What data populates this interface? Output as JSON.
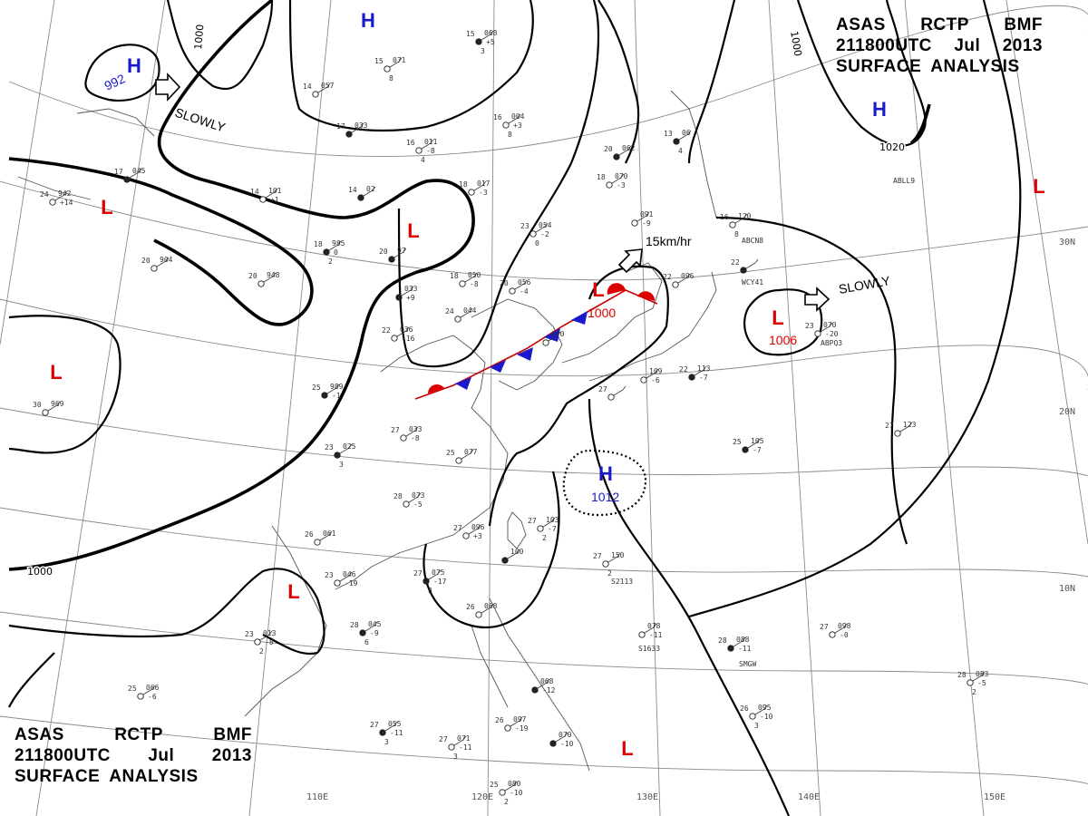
{
  "chart": {
    "title_lines": [
      [
        "ASAS",
        "RCTP",
        "BMF"
      ],
      [
        "211800UTC",
        "Jul",
        "2013"
      ],
      [
        "SURFACE",
        "ANALYSIS"
      ]
    ]
  },
  "longitude_labels": [
    "110E",
    "120E",
    "130E",
    "140E",
    "150E"
  ],
  "latitude_labels": [
    "30N",
    "20N",
    "10N"
  ],
  "isobar_labels": [
    "1000",
    "1000",
    "1020",
    "1000"
  ],
  "pressure_centers": [
    {
      "type": "H",
      "value": "992",
      "color": "#1a1acc"
    },
    {
      "type": "H",
      "value": "",
      "color": "#1a1acc"
    },
    {
      "type": "H",
      "value": "",
      "color": "#1a1acc"
    },
    {
      "type": "H",
      "value": "1012",
      "color": "#1a1acc"
    },
    {
      "type": "L",
      "value": "",
      "color": "#dd0000"
    },
    {
      "type": "L",
      "value": "",
      "color": "#dd0000"
    },
    {
      "type": "L",
      "value": "",
      "color": "#dd0000"
    },
    {
      "type": "L",
      "value": "1000",
      "color": "#dd0000"
    },
    {
      "type": "L",
      "value": "1006",
      "color": "#dd0000"
    },
    {
      "type": "L",
      "value": "",
      "color": "#dd0000"
    },
    {
      "type": "L",
      "value": "",
      "color": "#dd0000"
    },
    {
      "type": "L",
      "value": "",
      "color": "#dd0000"
    }
  ],
  "movement_labels": [
    "SLOWLY",
    "15km/hr",
    "SLOWLY"
  ],
  "ship_callsigns": [
    "ABLL9",
    "ABCN8",
    "WCY41",
    "ABPQ3",
    "SMGW",
    "S2113",
    "S1633"
  ],
  "stations": [
    {
      "temp": "15",
      "pressure": "068",
      "tendency": "+5",
      "extra": "3"
    },
    {
      "temp": "15",
      "pressure": "071",
      "tendency": "",
      "extra": "8"
    },
    {
      "temp": "14",
      "pressure": "057",
      "tendency": "",
      "extra": ""
    },
    {
      "temp": "17",
      "pressure": "033",
      "tendency": "",
      "extra": ""
    },
    {
      "temp": "16",
      "pressure": "004",
      "tendency": "+3",
      "extra": "8"
    },
    {
      "temp": "16",
      "pressure": "011",
      "tendency": "-8",
      "extra": "4"
    },
    {
      "temp": "17",
      "pressure": "045",
      "tendency": "",
      "extra": ""
    },
    {
      "temp": "24",
      "pressure": "942",
      "tendency": "+14",
      "extra": ""
    },
    {
      "temp": "14",
      "pressure": "101",
      "tendency": "+1",
      "extra": ""
    },
    {
      "temp": "14",
      "pressure": "02",
      "tendency": "",
      "extra": ""
    },
    {
      "temp": "18",
      "pressure": "017",
      "tendency": "-3",
      "extra": ""
    },
    {
      "temp": "23",
      "pressure": "054",
      "tendency": "-2",
      "extra": "0"
    },
    {
      "temp": "18",
      "pressure": "985",
      "tendency": "0",
      "extra": "2"
    },
    {
      "temp": "20",
      "pressure": "904",
      "tendency": "",
      "extra": ""
    },
    {
      "temp": "20",
      "pressure": "948",
      "tendency": "",
      "extra": ""
    },
    {
      "temp": "20",
      "pressure": "97",
      "tendency": "",
      "extra": ""
    },
    {
      "temp": "18",
      "pressure": "050",
      "tendency": "-8",
      "extra": ""
    },
    {
      "temp": "20",
      "pressure": "056",
      "tendency": "-4",
      "extra": ""
    },
    {
      "temp": "",
      "pressure": "033",
      "tendency": "+9",
      "extra": ""
    },
    {
      "temp": "24",
      "pressure": "044",
      "tendency": "",
      "extra": ""
    },
    {
      "temp": "22",
      "pressure": "036",
      "tendency": "-16",
      "extra": ""
    },
    {
      "temp": "20",
      "pressure": "062",
      "tendency": "",
      "extra": ""
    },
    {
      "temp": "18",
      "pressure": "070",
      "tendency": "-3",
      "extra": ""
    },
    {
      "temp": "",
      "pressure": "091",
      "tendency": "-9",
      "extra": ""
    },
    {
      "temp": "13",
      "pressure": "06",
      "tendency": "",
      "extra": "4"
    },
    {
      "temp": "16",
      "pressure": "120",
      "tendency": "",
      "extra": "8"
    },
    {
      "temp": "22",
      "pressure": "096",
      "tendency": "",
      "extra": ""
    },
    {
      "temp": "22",
      "pressure": "",
      "tendency": "",
      "extra": ""
    },
    {
      "temp": "",
      "pressure": "070",
      "tendency": "",
      "extra": ""
    },
    {
      "temp": "23",
      "pressure": "070",
      "tendency": "-20",
      "extra": ""
    },
    {
      "temp": "25",
      "pressure": "989",
      "tendency": "-1",
      "extra": ""
    },
    {
      "temp": "30",
      "pressure": "969",
      "tendency": "",
      "extra": ""
    },
    {
      "temp": "27",
      "pressure": "033",
      "tendency": "-8",
      "extra": ""
    },
    {
      "temp": "23",
      "pressure": "025",
      "tendency": "",
      "extra": "3"
    },
    {
      "temp": "25",
      "pressure": "077",
      "tendency": "",
      "extra": ""
    },
    {
      "temp": "28",
      "pressure": "073",
      "tendency": "-5",
      "extra": ""
    },
    {
      "temp": "22",
      "pressure": "113",
      "tendency": "-7",
      "extra": ""
    },
    {
      "temp": "",
      "pressure": "109",
      "tendency": "-6",
      "extra": ""
    },
    {
      "temp": "27",
      "pressure": "123",
      "tendency": "",
      "extra": ""
    },
    {
      "temp": "25",
      "pressure": "105",
      "tendency": "-7",
      "extra": ""
    },
    {
      "temp": "27",
      "pressure": "096",
      "tendency": "+3",
      "extra": ""
    },
    {
      "temp": "27",
      "pressure": "103",
      "tendency": "-7",
      "extra": "2"
    },
    {
      "temp": "",
      "pressure": "100",
      "tendency": "",
      "extra": ""
    },
    {
      "temp": "26",
      "pressure": "061",
      "tendency": "",
      "extra": ""
    },
    {
      "temp": "23",
      "pressure": "046",
      "tendency": "-19",
      "extra": ""
    },
    {
      "temp": "27",
      "pressure": "075",
      "tendency": "-17",
      "extra": "3"
    },
    {
      "temp": "27",
      "pressure": "150",
      "tendency": "",
      "extra": "2"
    },
    {
      "temp": "26",
      "pressure": "068",
      "tendency": "",
      "extra": ""
    },
    {
      "temp": "28",
      "pressure": "045",
      "tendency": "-9",
      "extra": "6"
    },
    {
      "temp": "",
      "pressure": "078",
      "tendency": "-11",
      "extra": ""
    },
    {
      "temp": "27",
      "pressure": "098",
      "tendency": "-0",
      "extra": ""
    },
    {
      "temp": "28",
      "pressure": "088",
      "tendency": "-11",
      "extra": ""
    },
    {
      "temp": "23",
      "pressure": "013",
      "tendency": "-8",
      "extra": "2"
    },
    {
      "temp": "25",
      "pressure": "066",
      "tendency": "-6",
      "extra": ""
    },
    {
      "temp": "",
      "pressure": "068",
      "tendency": "-12",
      "extra": ""
    },
    {
      "temp": "28",
      "pressure": "083",
      "tendency": "-5",
      "extra": "2"
    },
    {
      "temp": "26",
      "pressure": "095",
      "tendency": "-10",
      "extra": "3"
    },
    {
      "temp": "27",
      "pressure": "055",
      "tendency": "-11",
      "extra": "3"
    },
    {
      "temp": "27",
      "pressure": "071",
      "tendency": "-11",
      "extra": "3"
    },
    {
      "temp": "26",
      "pressure": "097",
      "tendency": "-19",
      "extra": ""
    },
    {
      "temp": "",
      "pressure": "070",
      "tendency": "-10",
      "extra": ""
    },
    {
      "temp": "25",
      "pressure": "080",
      "tendency": "-10",
      "extra": "2"
    },
    {
      "temp": "27",
      "pressure": "",
      "tendency": "",
      "extra": ""
    }
  ]
}
